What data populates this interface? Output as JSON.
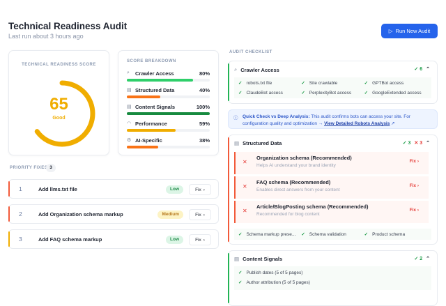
{
  "header": {
    "title": "Technical Readiness Audit",
    "subtitle": "Last run about 3 hours ago",
    "run_button": "Run New Audit"
  },
  "score": {
    "label": "Technical Readiness Score",
    "value": "65",
    "percent": 65,
    "rating": "Good",
    "color": "#f0ad00"
  },
  "breakdown": {
    "label": "Score Breakdown",
    "items": [
      {
        "name": "Crawler Access",
        "value": "80%",
        "percent": 80,
        "color": "#2fcf6a",
        "icon": "search-icon"
      },
      {
        "name": "Structured Data",
        "value": "40%",
        "percent": 40,
        "color": "#f97316",
        "icon": "document-icon"
      },
      {
        "name": "Content Signals",
        "value": "100%",
        "percent": 100,
        "color": "#178a3f",
        "icon": "document-icon"
      },
      {
        "name": "Performance",
        "value": "59%",
        "percent": 59,
        "color": "#f0ad00",
        "icon": "gauge-icon"
      },
      {
        "name": "AI-Specific",
        "value": "38%",
        "percent": 38,
        "color": "#f97316",
        "icon": "bot-icon"
      }
    ]
  },
  "priority": {
    "label": "Priority Fixes",
    "count": "3",
    "items": [
      {
        "num": "1",
        "text": "Add llms.txt file",
        "effort": "Low",
        "fix": "Fix",
        "accent": "#f25a3a"
      },
      {
        "num": "2",
        "text": "Add Organization schema markup",
        "effort": "Medium",
        "fix": "Fix",
        "accent": "#f25a3a"
      },
      {
        "num": "3",
        "text": "Add FAQ schema markup",
        "effort": "Low",
        "fix": "Fix",
        "accent": "#f0ad00"
      }
    ]
  },
  "checklist": {
    "label": "Audit Checklist",
    "crawler": {
      "title": "Crawler Access",
      "passed": "6",
      "items": [
        "robots.txt file",
        "Site crawlable",
        "GPTBot access",
        "ClaudeBot access",
        "PerplexityBot access",
        "GoogleExtended access"
      ]
    },
    "info": {
      "bold": "Quick Check vs Deep Analysis:",
      "text": " This audit confirms bots can access your site. For configuration quality and optimization → ",
      "link": "View Detailed Robots Analysis"
    },
    "structured": {
      "title": "Structured Data",
      "passed": "3",
      "failed": "3",
      "failures": [
        {
          "title": "Organization schema (Recommended)",
          "desc": "Helps AI understand your brand identity",
          "fix": "Fix"
        },
        {
          "title": "FAQ schema (Recommended)",
          "desc": "Enables direct answers from your content",
          "fix": "Fix"
        },
        {
          "title": "Article/BlogPosting schema (Recommended)",
          "desc": "Recommended for blog content",
          "fix": "Fix"
        }
      ],
      "passes": [
        "Schema markup prese...",
        "Schema validation",
        "Product schema"
      ]
    },
    "content": {
      "title": "Content Signals",
      "passed": "2",
      "items": [
        "Publish dates (5 of 5 pages)",
        "Author attribution (5 of 5 pages)"
      ]
    }
  }
}
